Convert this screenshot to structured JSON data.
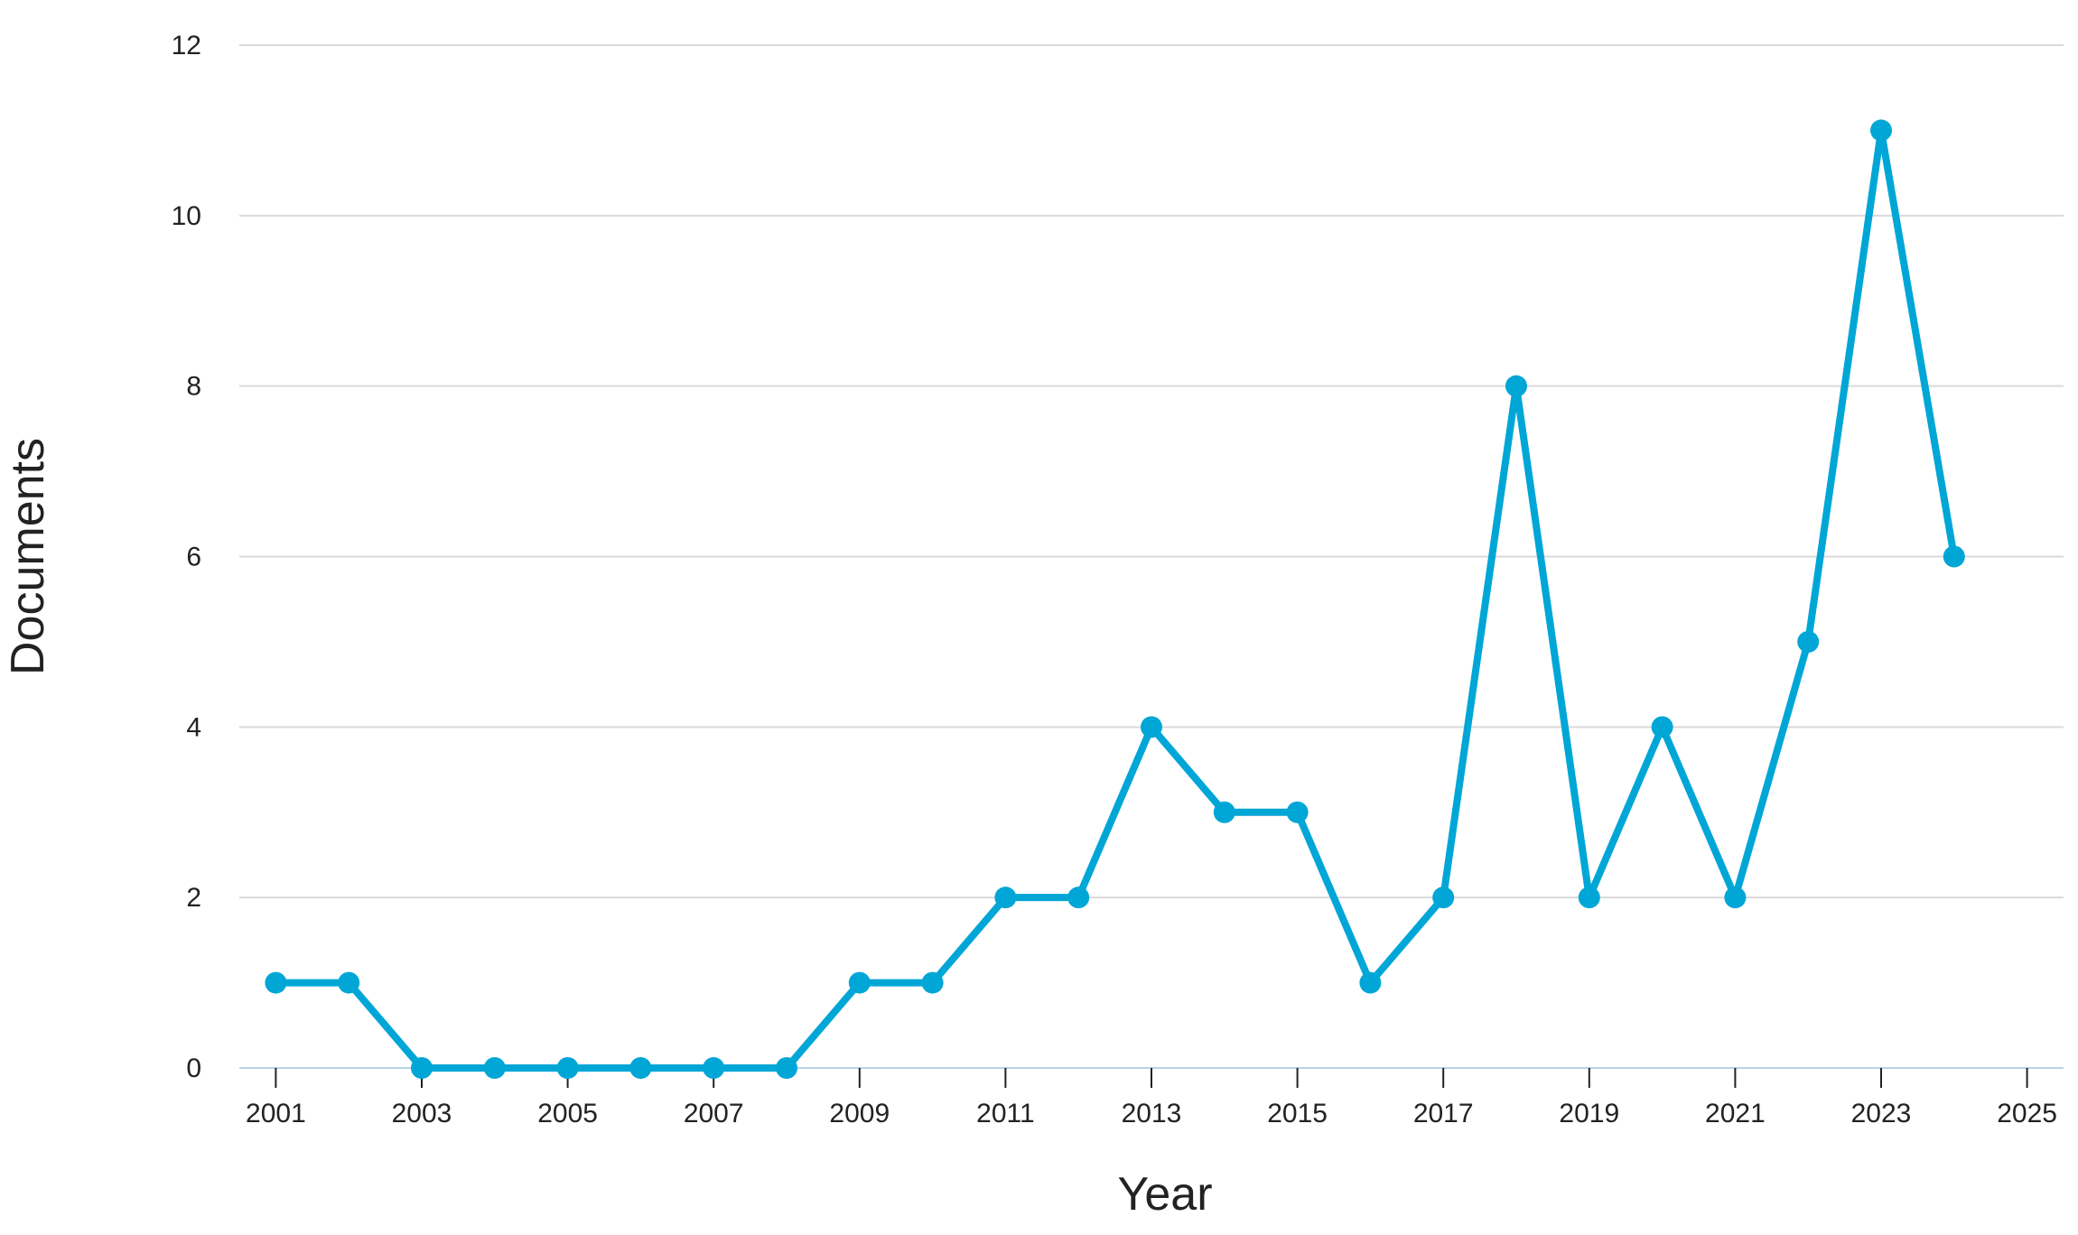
{
  "chart_data": {
    "type": "line",
    "title": "",
    "xlabel": "Year",
    "ylabel": "Documents",
    "xlim": [
      2000.5,
      2025.5
    ],
    "ylim": [
      0,
      12
    ],
    "x_ticks": [
      2001,
      2003,
      2005,
      2007,
      2009,
      2011,
      2013,
      2015,
      2017,
      2019,
      2021,
      2023,
      2025
    ],
    "y_ticks": [
      0,
      2,
      4,
      6,
      8,
      10,
      12
    ],
    "grid": true,
    "legend": "none",
    "colors": {
      "series": "#00a6d6",
      "grid": "#d9d9d9",
      "baseline": "#b8d4e3",
      "text": "#222222"
    },
    "x": [
      2001,
      2002,
      2003,
      2004,
      2005,
      2006,
      2007,
      2008,
      2009,
      2010,
      2011,
      2012,
      2013,
      2014,
      2015,
      2016,
      2017,
      2018,
      2019,
      2020,
      2021,
      2022,
      2023,
      2024
    ],
    "series": [
      {
        "values": [
          1,
          1,
          0,
          0,
          0,
          0,
          0,
          0,
          1,
          1,
          2,
          2,
          4,
          3,
          3,
          1,
          2,
          8,
          2,
          4,
          2,
          5,
          11,
          6
        ]
      }
    ]
  }
}
